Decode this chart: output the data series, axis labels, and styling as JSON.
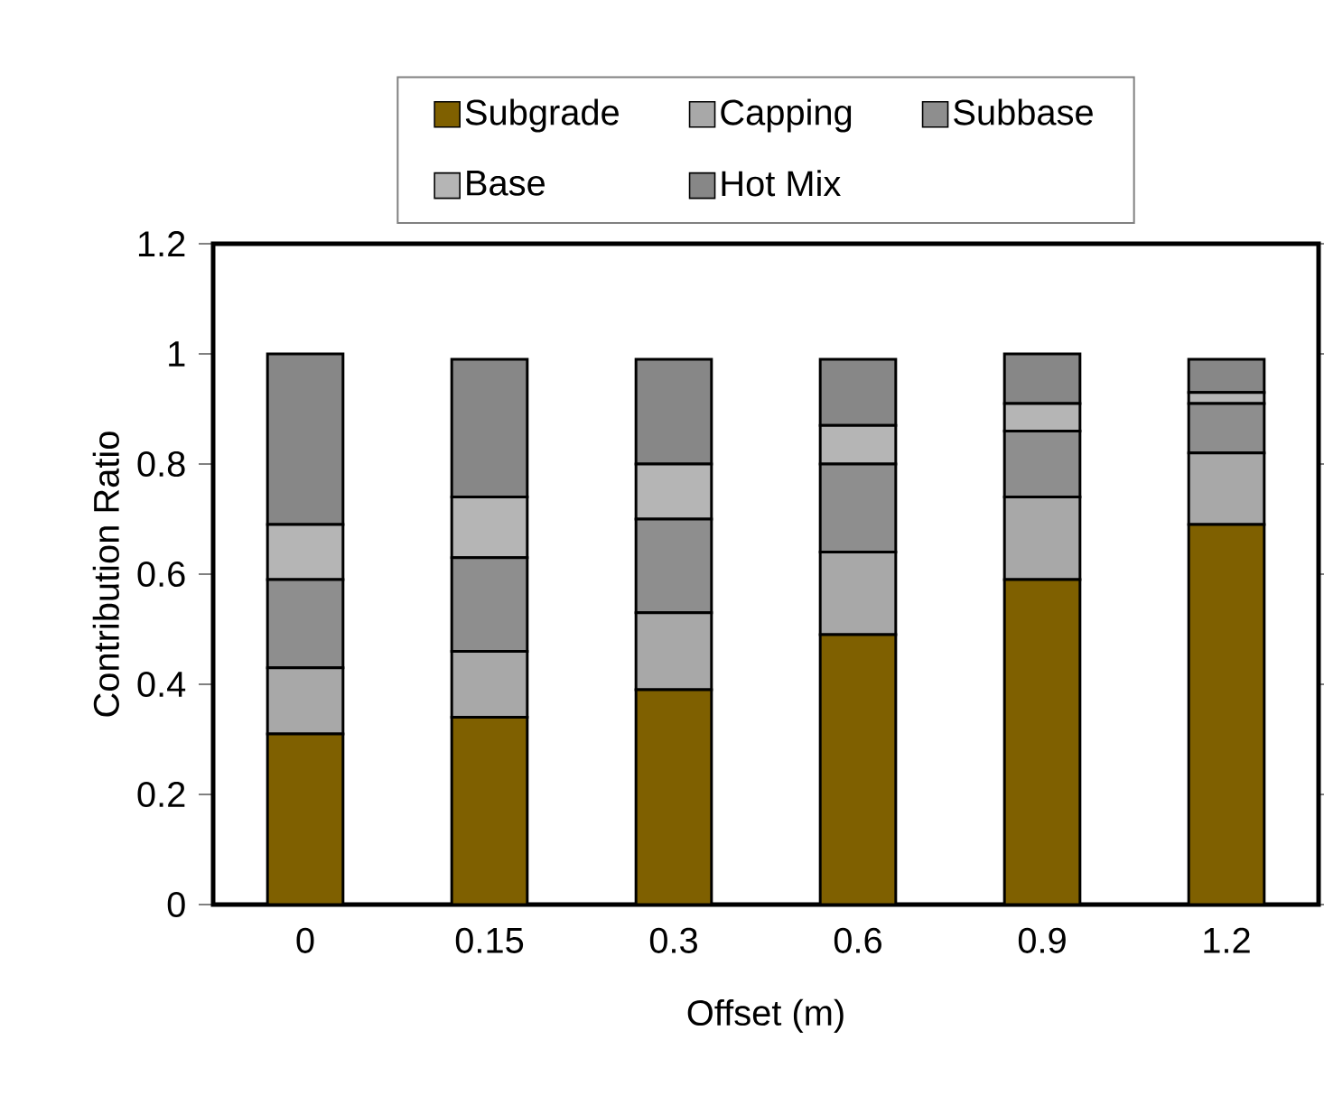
{
  "chart_data": {
    "type": "bar",
    "stacked": true,
    "xlabel": "Offset (m)",
    "ylabel": "Contribution Ratio",
    "categories": [
      "0",
      "0.15",
      "0.3",
      "0.6",
      "0.9",
      "1.2"
    ],
    "series": [
      {
        "name": "Subgrade",
        "color": "#7f6000",
        "values": [
          0.31,
          0.34,
          0.39,
          0.49,
          0.59,
          0.69
        ]
      },
      {
        "name": "Capping",
        "color": "#a8a8a8",
        "values": [
          0.12,
          0.12,
          0.14,
          0.15,
          0.15,
          0.13
        ]
      },
      {
        "name": "Subbase",
        "color": "#8e8e8e",
        "values": [
          0.16,
          0.17,
          0.17,
          0.16,
          0.12,
          0.09
        ]
      },
      {
        "name": "Base",
        "color": "#b5b5b5",
        "values": [
          0.1,
          0.11,
          0.1,
          0.07,
          0.05,
          0.02
        ]
      },
      {
        "name": "Hot Mix",
        "color": "#878787",
        "values": [
          0.31,
          0.25,
          0.19,
          0.12,
          0.09,
          0.06
        ]
      }
    ],
    "ylim": [
      0,
      1.2
    ],
    "yticks": [
      0,
      0.2,
      0.4,
      0.6,
      0.8,
      1,
      1.2
    ],
    "grid": false,
    "legend": "top"
  }
}
